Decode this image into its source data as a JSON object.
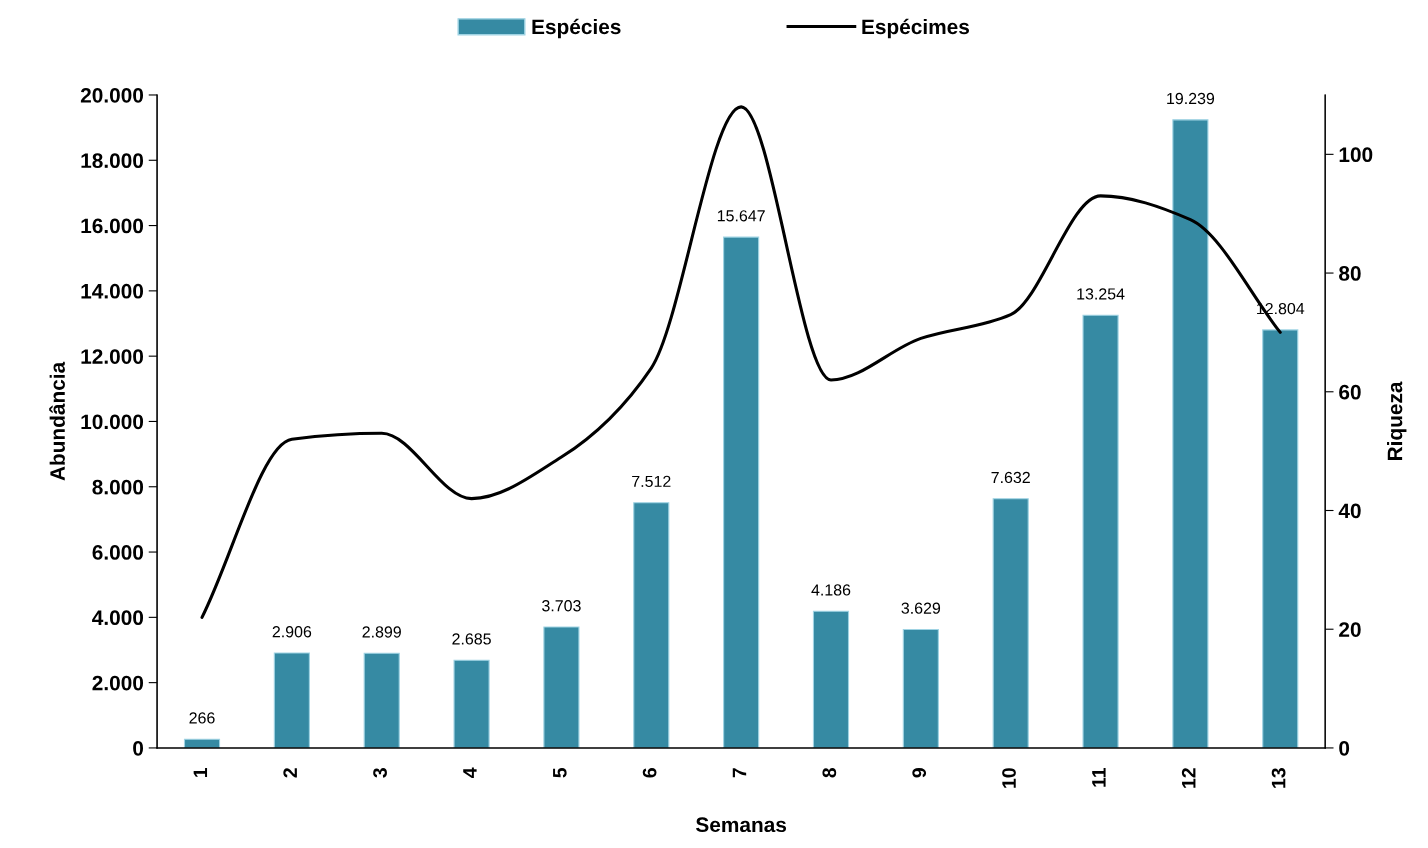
{
  "chart_data": {
    "type": "bar",
    "xlabel": "Semanas",
    "ylabel": "Abundância",
    "y2label": "Riqueza",
    "categories": [
      "1",
      "2",
      "3",
      "4",
      "5",
      "6",
      "7",
      "8",
      "9",
      "10",
      "11",
      "12",
      "13"
    ],
    "series": [
      {
        "name": "Espécies",
        "color": "#368aa3",
        "values": [
          266,
          2906,
          2899,
          2685,
          3703,
          7512,
          15647,
          4186,
          3629,
          7632,
          13254,
          19239,
          12804
        ],
        "value_labels": [
          "266",
          "2.906",
          "2.899",
          "2.685",
          "3.703",
          "7.512",
          "15.647",
          "4.186",
          "3.629",
          "7.632",
          "13.254",
          "19.239",
          "12.804"
        ]
      },
      {
        "name": "Espécimes",
        "type": "line",
        "axis": "y2",
        "color": "#000000",
        "values": [
          22,
          52,
          53,
          42,
          49,
          64,
          108,
          62,
          69,
          73,
          93,
          89,
          70
        ]
      }
    ],
    "ylim": [
      0,
      20000
    ],
    "yticks": [
      {
        "value": 0,
        "label": "0"
      },
      {
        "value": 2000,
        "label": "2.000"
      },
      {
        "value": 4000,
        "label": "4.000"
      },
      {
        "value": 6000,
        "label": "6.000"
      },
      {
        "value": 8000,
        "label": "8.000"
      },
      {
        "value": 10000,
        "label": "10.000"
      },
      {
        "value": 12000,
        "label": "12.000"
      },
      {
        "value": 14000,
        "label": "14.000"
      },
      {
        "value": 16000,
        "label": "16.000"
      },
      {
        "value": 18000,
        "label": "18.000"
      },
      {
        "value": 20000,
        "label": "20.000"
      }
    ],
    "y2lim": [
      0,
      110
    ],
    "y2ticks": [
      0,
      20,
      40,
      60,
      80,
      100
    ],
    "grid": false,
    "legend": "top"
  }
}
